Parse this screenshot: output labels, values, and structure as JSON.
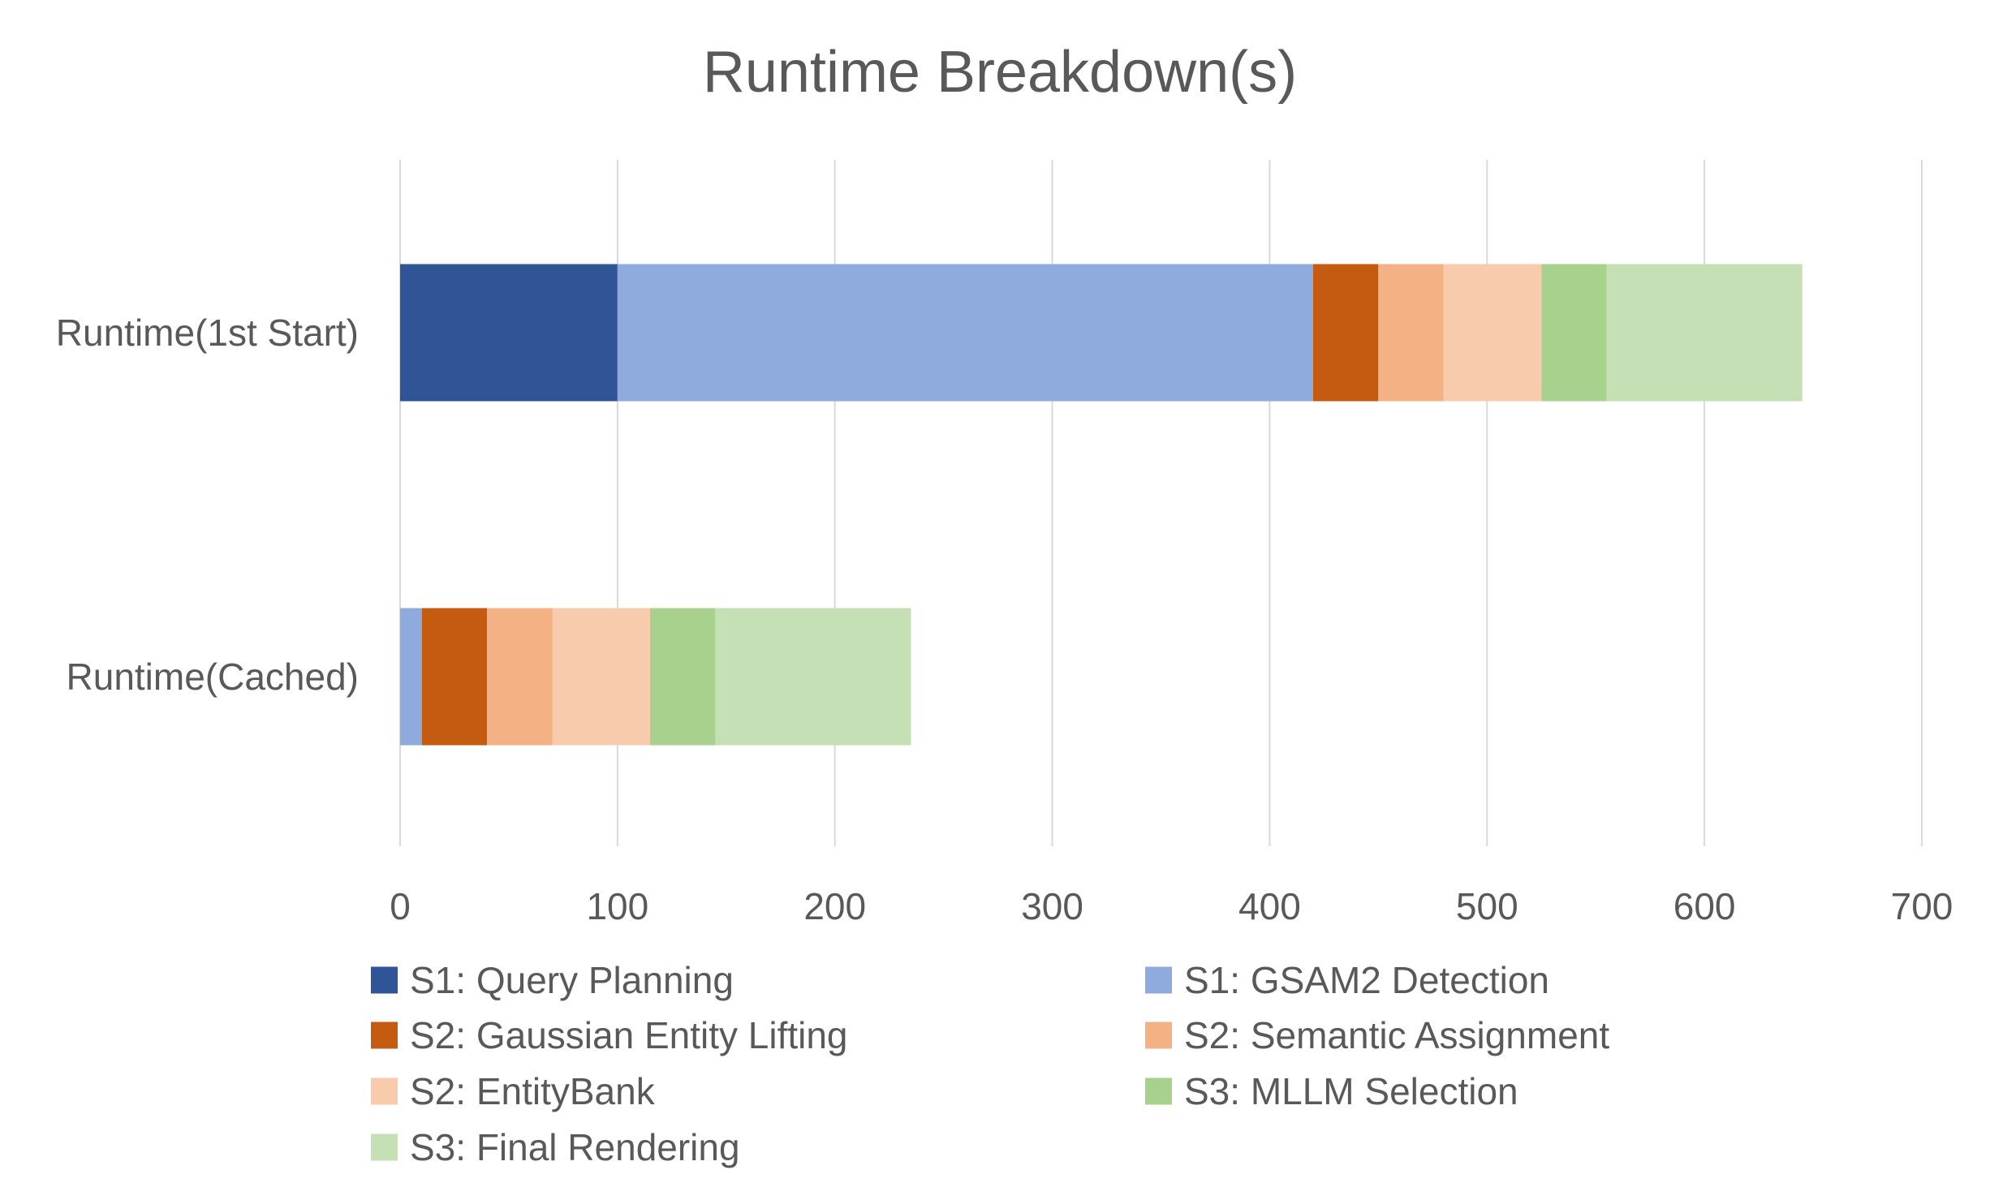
{
  "chart_data": {
    "type": "bar",
    "orientation": "horizontal",
    "stacked": true,
    "title": "Runtime Breakdown(s)",
    "xlabel": "",
    "ylabel": "",
    "xlim": [
      0,
      700
    ],
    "x_ticks": [
      0,
      100,
      200,
      300,
      400,
      500,
      600,
      700
    ],
    "grid": "vertical gridlines",
    "legend_position": "bottom",
    "categories": [
      "Runtime(1st Start)",
      "Runtime(Cached)"
    ],
    "series": [
      {
        "name": "S1: Query Planning",
        "color": "#2F5597",
        "values": [
          100,
          0
        ]
      },
      {
        "name": "S1: GSAM2 Detection",
        "color": "#8FAADC",
        "values": [
          320,
          10
        ]
      },
      {
        "name": "S2: Gaussian Entity Lifting",
        "color": "#C55A11",
        "values": [
          30,
          30
        ]
      },
      {
        "name": "S2: Semantic Assignment",
        "color": "#F4B183",
        "values": [
          30,
          30
        ]
      },
      {
        "name": "S2: EntityBank",
        "color": "#F8CBAD",
        "values": [
          45,
          45
        ]
      },
      {
        "name": "S3: MLLM Selection",
        "color": "#A9D18E",
        "values": [
          30,
          30
        ]
      },
      {
        "name": "S3: Final Rendering",
        "color": "#C5E0B4",
        "values": [
          90,
          90
        ]
      }
    ]
  }
}
